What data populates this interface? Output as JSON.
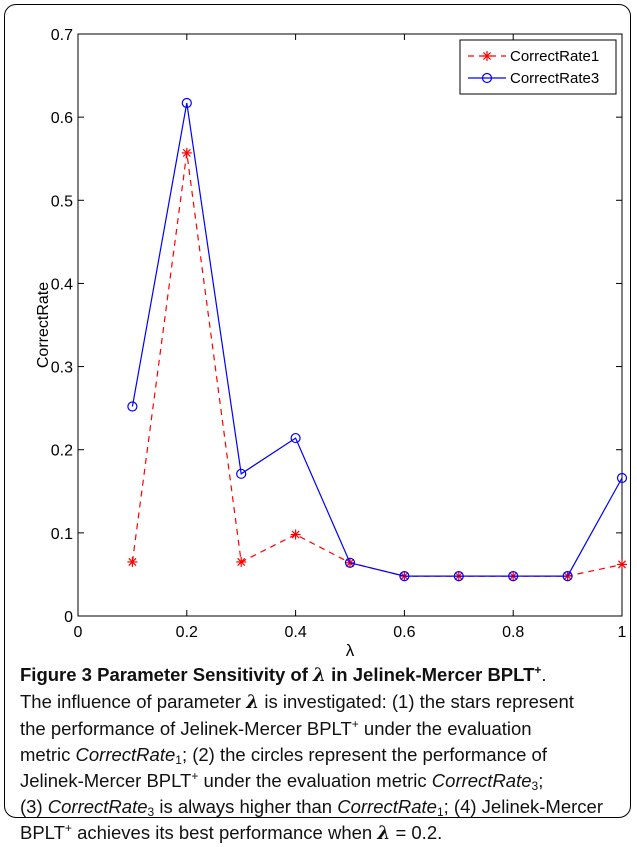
{
  "chart_data": {
    "type": "line",
    "xlabel": "λ",
    "ylabel": "CorrectRate",
    "xlim": [
      0,
      1
    ],
    "ylim": [
      0,
      0.7
    ],
    "x_ticks": [
      "0",
      "0.2",
      "0.4",
      "0.6",
      "0.8",
      "1"
    ],
    "y_ticks": [
      "0",
      "0.1",
      "0.2",
      "0.3",
      "0.4",
      "0.5",
      "0.6",
      "0.7"
    ],
    "x": [
      0.1,
      0.2,
      0.3,
      0.4,
      0.5,
      0.6,
      0.7,
      0.8,
      0.9,
      1.0
    ],
    "series": [
      {
        "name": "CorrectRate1",
        "color": "#ff0000",
        "line": "dashed",
        "marker": "star",
        "values": [
          0.065,
          0.557,
          0.065,
          0.098,
          0.064,
          0.048,
          0.048,
          0.048,
          0.048,
          0.062
        ]
      },
      {
        "name": "CorrectRate3",
        "color": "#0000ff",
        "line": "solid",
        "marker": "circle",
        "values": [
          0.252,
          0.617,
          0.171,
          0.214,
          0.064,
          0.048,
          0.048,
          0.048,
          0.048,
          0.166
        ]
      }
    ],
    "legend_position": "top-right",
    "grid": false
  },
  "caption": {
    "figure_label": "Figure 3",
    "title_pre": "Parameter Sensitivity of",
    "lambda": "λ",
    "title_post": "in Jelinek-Mercer BPLT",
    "plus": "+",
    "dot": ".",
    "line1": "The influence of parameter",
    "line1b": "is investigated: (1) the stars represent",
    "line2": "the performance of Jelinek-Mercer BPLT",
    "line2b": "under the evaluation",
    "line3": "metric",
    "cr": "CorrectRate",
    "sub1": "1",
    "sub3": "3",
    "line3b": "; (2) the circles represent the performance of",
    "line4": "Jelinek-Mercer BPLT",
    "line4b": "under the evaluation metric",
    "semi": ";",
    "line5a": "(3)",
    "line5b": "is always higher than",
    "line5c": "; (4) Jelinek-Mercer",
    "line6": "BPLT",
    "line6b": "achieves its best performance when",
    "line6c": "= 0.2."
  }
}
